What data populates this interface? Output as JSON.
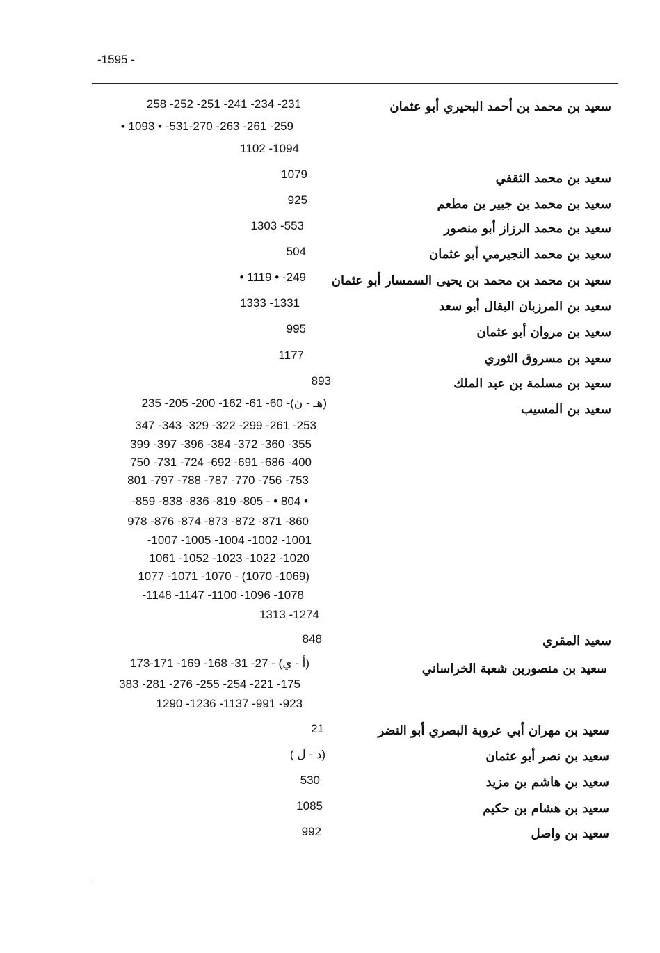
{
  "page_number": "-1595 -",
  "entries": [
    {
      "name": "سعيد بن محمد بن أحمد البحيري أبو عثمان",
      "lines": [
        "258 -252 -251 -241 -234 -231",
        "• 1093 • -531-270 -263 -261 -259",
        "1102 -1094"
      ]
    },
    {
      "name": "سعيد بن محمد الثقفي",
      "lines": [
        "1079"
      ]
    },
    {
      "name": "سعيد بن محمد بن جبير بن مطعم",
      "lines": [
        "925"
      ]
    },
    {
      "name": "سعيد بن محمد الرزاز أبو منصور",
      "lines": [
        "1303 -553"
      ]
    },
    {
      "name": "سعيد بن محمد النجيرمي أبو عثمان",
      "lines": [
        "504"
      ]
    },
    {
      "name": "سعيد بن محمد بن محمد بن يحيى السمسار أبو عثمان",
      "lines": [
        "• 1119 • -249"
      ]
    },
    {
      "name": "سعيد بن المرزبان البقال أبو سعد",
      "lines": [
        "1333 -1331"
      ]
    },
    {
      "name": "سعيد بن مروان أبو عثمان",
      "lines": [
        "995"
      ]
    },
    {
      "name": "سعيد بن مسروق الثوري",
      "lines": [
        "1177"
      ]
    },
    {
      "name": "سعيد بن مسلمة بن عبد الملك",
      "lines": [
        "893"
      ]
    },
    {
      "name": "سعيد بن المسيب",
      "lines": [
        "235 -205 -200 -162 -61 -60 -(هـ - ن)",
        "347 -343 -329 -322 -299 -261 -253",
        "399 -397 -396 -384 -372 -360 -355",
        "750 -731 -724 -692 -691 -686 -400",
        "801 -797 -788 -787 -770 -756 -753",
        "-859 -838 -836 -819 -805 - • 804 •",
        "978 -876 -874 -873 -872 -871 -860",
        "-1007 -1005 -1004 -1002 -1001",
        "1061 -1052 -1023 -1022 -1020",
        "1077 -1071 -1070 - (1070 -1069)",
        "-1148 -1147 -1100 -1096 -1078",
        "1313 -1274"
      ]
    },
    {
      "name": "سعيد المقري",
      "lines": [
        "848"
      ]
    },
    {
      "name": "سعيد بن منصوربن شعبة الخراساني",
      "lines": [
        "173-171 -169 -168 -31 -27 - (أ - ي)",
        "383 -281 -276 -255 -254 -221 -175",
        "1290 -1236 -1137 -991 -923"
      ]
    },
    {
      "name": "سعيد بن مهران أبي عروبة البصري أبو النضر",
      "lines": [
        "21"
      ]
    },
    {
      "name": "سعيد بن نصر أبو عثمان",
      "lines": [
        "( د - ل)"
      ]
    },
    {
      "name": "سعيد بن هاشم بن مزيد",
      "lines": [
        "530"
      ]
    },
    {
      "name": "سعيد بن هشام بن حكيم",
      "lines": [
        "1085"
      ]
    },
    {
      "name": "سعيد بن واصل",
      "lines": [
        "992"
      ]
    }
  ]
}
